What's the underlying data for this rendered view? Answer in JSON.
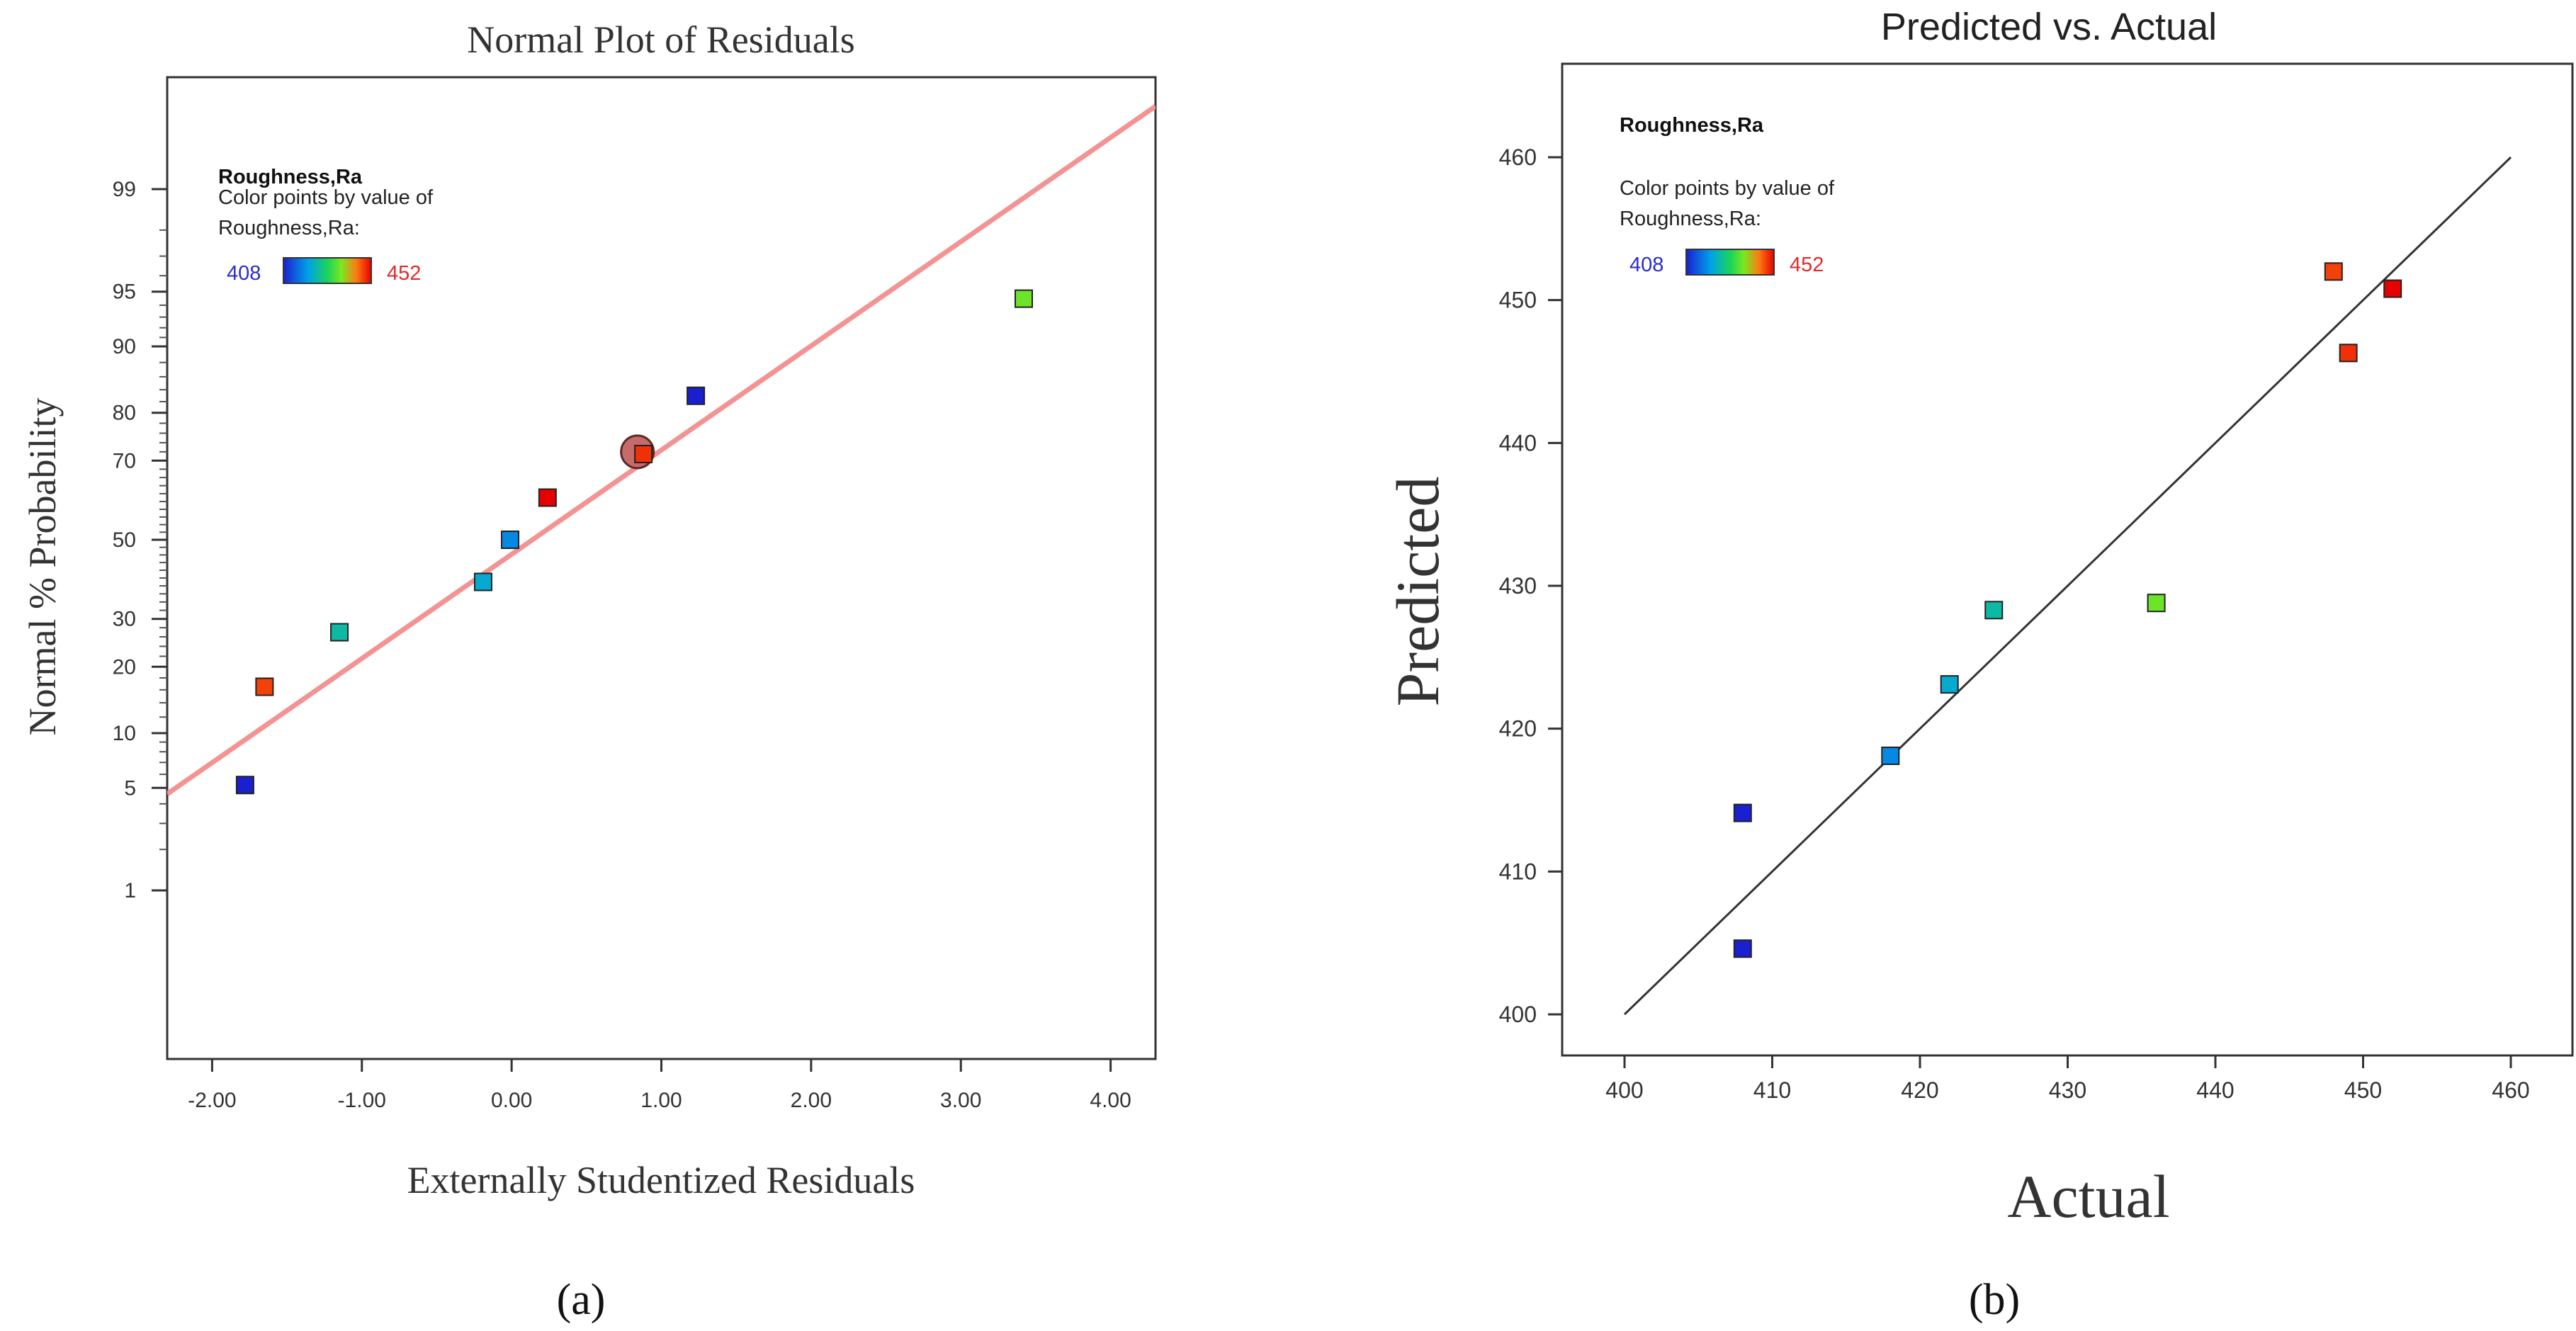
{
  "chart_data": [
    {
      "type": "scatter",
      "panel_label": "(a)",
      "title": "Normal Plot of Residuals",
      "xlabel": "Externally Studentized Residuals",
      "ylabel": "Normal % Probability",
      "xlim": [
        -2.3,
        4.3
      ],
      "x_ticks": [
        "-2.00",
        "-1.00",
        "0.00",
        "1.00",
        "2.00",
        "3.00",
        "4.00"
      ],
      "x_tick_values": [
        -2,
        -1,
        0,
        1,
        2,
        3,
        4
      ],
      "y_scale": "normal-probability",
      "y_ticks": [
        "1",
        "5",
        "10",
        "20",
        "30",
        "50",
        "70",
        "80",
        "90",
        "95",
        "99"
      ],
      "y_tick_values": [
        1,
        5,
        10,
        20,
        30,
        50,
        70,
        80,
        90,
        95,
        99
      ],
      "legend": {
        "response": "Roughness,Ra",
        "color_caption_line1": "Color points by value of",
        "color_caption_line2": "Roughness,Ra:",
        "min_label": "408",
        "max_label": "452",
        "placement": "top-left"
      },
      "reference_line": {
        "x1": -2.3,
        "p1": 4.6,
        "x2": 4.3,
        "p2": 99.8,
        "color": "#f39393"
      },
      "highlight_point": {
        "x": 0.84,
        "p": 72
      },
      "points": [
        {
          "x": -1.78,
          "p": 5.2,
          "value": 408
        },
        {
          "x": -1.65,
          "p": 16.5,
          "value": 448
        },
        {
          "x": -1.15,
          "p": 27,
          "value": 425
        },
        {
          "x": -0.19,
          "p": 39,
          "value": 422
        },
        {
          "x": -0.01,
          "p": 50,
          "value": 418
        },
        {
          "x": 0.24,
          "p": 61,
          "value": 452
        },
        {
          "x": 0.88,
          "p": 71.5,
          "value": 449
        },
        {
          "x": 1.23,
          "p": 83,
          "value": 408
        },
        {
          "x": 3.42,
          "p": 94.5,
          "value": 436
        }
      ]
    },
    {
      "type": "scatter",
      "panel_label": "(b)",
      "title": "Predicted vs. Actual",
      "xlabel": "Actual",
      "ylabel": "Predicted",
      "xlim": [
        396,
        464
      ],
      "ylim": [
        396.5,
        463.5
      ],
      "x_ticks": [
        "400",
        "410",
        "420",
        "430",
        "440",
        "450",
        "460"
      ],
      "x_tick_values": [
        400,
        410,
        420,
        430,
        440,
        450,
        460
      ],
      "y_ticks": [
        "400",
        "410",
        "420",
        "430",
        "440",
        "450",
        "460"
      ],
      "y_tick_values": [
        400,
        410,
        420,
        430,
        440,
        450,
        460
      ],
      "legend": {
        "response": "Roughness,Ra",
        "color_caption_line1": "Color points by value of",
        "color_caption_line2": "Roughness,Ra:",
        "min_label": "408",
        "max_label": "452",
        "placement": "top-left"
      },
      "reference_line": {
        "x1": 400,
        "y1": 400,
        "x2": 460,
        "y2": 460,
        "color": "#333333"
      },
      "points": [
        {
          "x": 408,
          "y": 414.1,
          "value": 408
        },
        {
          "x": 408,
          "y": 404.6,
          "value": 408
        },
        {
          "x": 418,
          "y": 418.1,
          "value": 418
        },
        {
          "x": 422,
          "y": 423.1,
          "value": 422
        },
        {
          "x": 425,
          "y": 428.3,
          "value": 425
        },
        {
          "x": 436,
          "y": 428.8,
          "value": 436
        },
        {
          "x": 448,
          "y": 452.0,
          "value": 448
        },
        {
          "x": 449,
          "y": 446.3,
          "value": 449
        },
        {
          "x": 452,
          "y": 450.8,
          "value": 452
        }
      ]
    }
  ],
  "colors": {
    "gradient": [
      "#1a1fd0",
      "#00a2e8",
      "#19d35a",
      "#7ae81f",
      "#ff7a12",
      "#e60000"
    ],
    "min_label_color": "#2b2bd0",
    "max_label_color": "#e02b2b"
  }
}
